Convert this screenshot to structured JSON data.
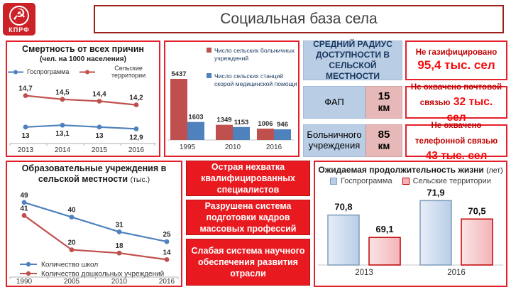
{
  "logo": {
    "name": "КПРФ",
    "emblem": "hammer-and-sickle"
  },
  "title": "Социальная база села",
  "colors": {
    "panel_border_red": "#e4202a",
    "title_border_dark_red": "#9b2018",
    "series_blue": "#4f81bd",
    "series_red": "#c0504d",
    "light_blue_cell": "#b9cde5",
    "pink_cell": "#e6b9b8",
    "bright_red_box": "#e8191f",
    "dark_red_text": "#c00000",
    "bright_red_text": "#f40b0b",
    "kprf_red": "#cb2127"
  },
  "chart_data": [
    {
      "id": "mortality",
      "type": "line",
      "title": "Смертность от всех причин",
      "subtitle": "(чел. на 1000 населения)",
      "categories": [
        "2013",
        "2014",
        "2015",
        "2016"
      ],
      "series": [
        {
          "name": "Госпрограмма",
          "color": "#4f81bd",
          "values": [
            13,
            13.1,
            13,
            12.9
          ],
          "labels": [
            "13",
            "13,1",
            "13",
            "12,9"
          ],
          "label_position": "below"
        },
        {
          "name": "Сельские территории",
          "color": "#c0504d",
          "values": [
            14.7,
            14.5,
            14.4,
            14.2
          ],
          "labels": [
            "14,7",
            "14,5",
            "14,4",
            "14,2"
          ],
          "label_position": "above"
        }
      ],
      "ylim": [
        12.3,
        15.2
      ],
      "legend_position": "top",
      "grid": false
    },
    {
      "id": "hospitals",
      "type": "bar",
      "title": "",
      "categories": [
        "1995",
        "2010",
        "2016"
      ],
      "series": [
        {
          "name": "Число сельских больничных учреждений",
          "legend_lines": [
            "Число сельских больничных",
            "учреждений"
          ],
          "color": "#c0504d",
          "values": [
            5437,
            1349,
            1006
          ],
          "labels": [
            "5437",
            "1349",
            "1006"
          ]
        },
        {
          "name": "Число сельских станций скорой медицинской помощи",
          "legend_lines": [
            "Число сельских станций",
            "скорой медицинской помощи"
          ],
          "color": "#4f81bd",
          "values": [
            1603,
            1153,
            946
          ],
          "labels": [
            "1603",
            "1153",
            "946"
          ]
        }
      ],
      "ylim": [
        0,
        5437
      ],
      "legend_position": "right",
      "grid": false
    },
    {
      "id": "education",
      "type": "line",
      "title": "Образовательные учреждения в сельской местности",
      "unit": "(тыс.)",
      "categories": [
        "1990",
        "2005",
        "2010",
        "2016"
      ],
      "series": [
        {
          "name": "Количество школ",
          "color": "#4f81bd",
          "values": [
            49,
            40,
            31,
            25
          ],
          "labels": [
            "49",
            "40",
            "31",
            "25"
          ],
          "label_position": "above"
        },
        {
          "name": "Количество дошкольных учреждений",
          "color": "#c0504d",
          "values": [
            41,
            20,
            18,
            14
          ],
          "labels": [
            "41",
            "20",
            "18",
            "14"
          ],
          "label_position": "above"
        }
      ],
      "ylim": [
        10,
        52
      ],
      "legend_position": "bottom-left",
      "grid": false
    },
    {
      "id": "life_expectancy",
      "type": "bar",
      "title": "Ожидаемая продолжительность жизни",
      "unit": "(лет)",
      "categories": [
        "2013",
        "2016"
      ],
      "series": [
        {
          "name": "Госпрограмма",
          "fill": "#b9cde8",
          "border": "#7f9db9",
          "values": [
            70.8,
            71.9
          ],
          "labels": [
            "70,8",
            "71,9"
          ]
        },
        {
          "name": "Сельские территории",
          "fill": "#f3b3b8",
          "border": "#c00000",
          "values": [
            69.1,
            70.5
          ],
          "labels": [
            "69,1",
            "70,5"
          ]
        }
      ],
      "ylim": [
        67,
        73
      ],
      "legend_position": "top",
      "grid": false
    }
  ],
  "radius_panel": {
    "header": "СРЕДНИЙ РАДИУС ДОСТУПНОСТИ В СЕЛЬСКОЙ МЕСТНОСТИ",
    "rows": [
      {
        "label": "ФАП",
        "value": "15",
        "unit": "км"
      },
      {
        "label": "Больничного учреждения",
        "value": "85",
        "unit": "км"
      }
    ]
  },
  "stat_boxes": [
    {
      "text": "Не газифицировано",
      "value": "95,4 тыс. сел"
    },
    {
      "text": "Не охвачено почтовой связью",
      "value": "32 тыс. сел"
    },
    {
      "text": "Не охвачено телефонной связью",
      "value": "43 тыс. сел"
    }
  ],
  "problem_boxes": [
    "Острая нехватка квалифицированных специалистов",
    "Разрушена система подготовки кадров массовых профессий",
    "Слабая система научного обеспечения развития отрасли"
  ]
}
